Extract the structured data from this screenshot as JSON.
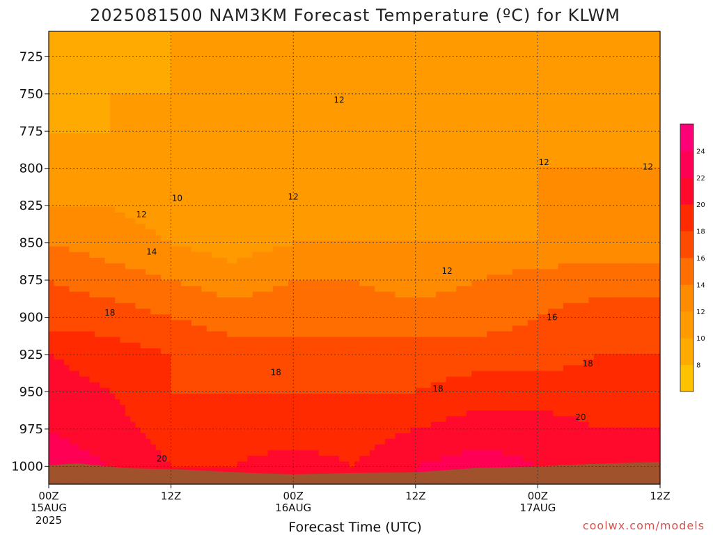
{
  "title": "2025081500 NAM3KM Forecast Temperature (ºC) for KLWM",
  "credit": "coolwx.com/models",
  "chart_data": {
    "type": "heatmap",
    "title": "2025081500 NAM3KM Forecast Temperature (ºC) for KLWM",
    "xlabel": "Forecast Time (UTC)",
    "ylabel": "",
    "x_ticks": [
      {
        "hour": 0,
        "label": "00Z",
        "sub1": "15AUG",
        "sub2": "2025"
      },
      {
        "hour": 12,
        "label": "12Z",
        "sub1": "",
        "sub2": ""
      },
      {
        "hour": 24,
        "label": "00Z",
        "sub1": "16AUG",
        "sub2": ""
      },
      {
        "hour": 36,
        "label": "12Z",
        "sub1": "",
        "sub2": ""
      },
      {
        "hour": 48,
        "label": "00Z",
        "sub1": "17AUG",
        "sub2": ""
      },
      {
        "hour": 60,
        "label": "12Z",
        "sub1": "",
        "sub2": ""
      }
    ],
    "xlim": [
      0,
      60
    ],
    "y_ticks": [
      725,
      750,
      775,
      800,
      825,
      850,
      875,
      900,
      925,
      950,
      975,
      1000
    ],
    "y_tick_labels": [
      "725",
      "750",
      "775",
      "800",
      "825",
      "850",
      "875",
      "900",
      "925",
      "950",
      "975",
      "1000"
    ],
    "ylim": [
      1012,
      708
    ],
    "colorbar": {
      "levels": [
        6,
        8,
        10,
        12,
        14,
        16,
        18,
        20,
        22,
        24,
        26
      ],
      "labels": [
        "8",
        "10",
        "12",
        "14",
        "16",
        "18",
        "20",
        "22",
        "24"
      ],
      "colors": [
        "#FFC200",
        "#FFAA00",
        "#FF9A00",
        "#FF8C00",
        "#FF6E00",
        "#FF4B00",
        "#FF2A00",
        "#FF0A2D",
        "#FF0055",
        "#FF0077"
      ]
    },
    "series": [
      {
        "hours": [
          0,
          6,
          12,
          18,
          24,
          30,
          36,
          42,
          48,
          54,
          60
        ],
        "temps_by_level": {
          "725": [
            8,
            9,
            10,
            10,
            11,
            11,
            11,
            11,
            11,
            11,
            10
          ],
          "750": [
            9,
            10,
            10,
            11,
            11,
            12,
            12,
            11,
            11,
            11,
            11
          ],
          "775": [
            10,
            10,
            10,
            11,
            11,
            11,
            12,
            11,
            12,
            11,
            11
          ],
          "800": [
            11,
            11,
            10,
            11,
            11,
            11,
            11,
            11,
            12,
            12,
            12
          ],
          "825": [
            12,
            12,
            11,
            11,
            12,
            11,
            11,
            11,
            12,
            12,
            13
          ],
          "850": [
            14,
            13,
            12,
            11,
            12,
            12,
            12,
            12,
            12,
            13,
            13
          ],
          "875": [
            16,
            15,
            14,
            13,
            14,
            14,
            13,
            14,
            15,
            15,
            15
          ],
          "900": [
            17,
            17,
            16,
            15,
            15,
            15,
            15,
            15,
            16,
            17,
            17
          ],
          "925": [
            20,
            19,
            18,
            17,
            17,
            17,
            17,
            17,
            17,
            18,
            18
          ],
          "950": [
            21,
            20,
            18,
            18,
            18,
            18,
            18,
            19,
            19,
            19,
            19
          ],
          "975": [
            22,
            21,
            19,
            19,
            19,
            19,
            20,
            21,
            21,
            20,
            20
          ],
          "1000": [
            23,
            22,
            20,
            20,
            21,
            20,
            22,
            23,
            22,
            21,
            21
          ]
        }
      }
    ],
    "contour_labels": [
      {
        "text": "12",
        "hour": 28.5,
        "p": 754
      },
      {
        "text": "12",
        "hour": 48.6,
        "p": 796
      },
      {
        "text": "12",
        "hour": 58.8,
        "p": 799
      },
      {
        "text": "12",
        "hour": 24,
        "p": 819
      },
      {
        "text": "10",
        "hour": 12.6,
        "p": 820
      },
      {
        "text": "12",
        "hour": 9.1,
        "p": 831
      },
      {
        "text": "14",
        "hour": 10.1,
        "p": 856
      },
      {
        "text": "12",
        "hour": 39.1,
        "p": 869
      },
      {
        "text": "18",
        "hour": 6,
        "p": 897
      },
      {
        "text": "16",
        "hour": 49.4,
        "p": 900
      },
      {
        "text": "18",
        "hour": 22.3,
        "p": 937
      },
      {
        "text": "18",
        "hour": 38.2,
        "p": 948
      },
      {
        "text": "18",
        "hour": 52.9,
        "p": 931
      },
      {
        "text": "20",
        "hour": 52.2,
        "p": 967
      },
      {
        "text": "20",
        "hour": 11.1,
        "p": 995
      }
    ],
    "grid": true,
    "legend": "right"
  }
}
